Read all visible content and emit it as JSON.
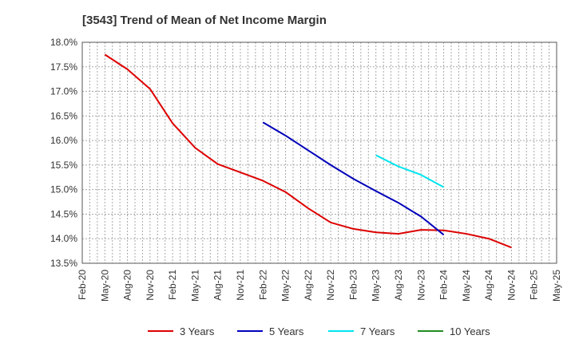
{
  "chart_data": {
    "type": "line",
    "title": "[3543]  Trend of Mean of Net Income Margin",
    "xlabel": "",
    "ylabel": "",
    "ylim": [
      13.5,
      18.0
    ],
    "grid": true,
    "legend_position": "bottom",
    "x_ticks": [
      "Feb-20",
      "May-20",
      "Aug-20",
      "Nov-20",
      "Feb-21",
      "May-21",
      "Aug-21",
      "Nov-21",
      "Feb-22",
      "May-22",
      "Aug-22",
      "Nov-22",
      "Feb-23",
      "May-23",
      "Aug-23",
      "Nov-23",
      "Feb-24",
      "May-24",
      "Aug-24",
      "Nov-24",
      "Feb-25",
      "May-25"
    ],
    "y_ticks": [
      "13.5%",
      "14.0%",
      "14.5%",
      "15.0%",
      "15.5%",
      "16.0%",
      "16.5%",
      "17.0%",
      "17.5%",
      "18.0%"
    ],
    "series": [
      {
        "name": "3 Years",
        "color": "#dd0000",
        "points": [
          [
            "May-20",
            17.75
          ],
          [
            "Aug-20",
            17.45
          ],
          [
            "Nov-20",
            17.05
          ],
          [
            "Feb-21",
            16.35
          ],
          [
            "May-21",
            15.85
          ],
          [
            "Aug-21",
            15.52
          ],
          [
            "Nov-21",
            15.35
          ],
          [
            "Feb-22",
            15.18
          ],
          [
            "May-22",
            14.95
          ],
          [
            "Aug-22",
            14.62
          ],
          [
            "Nov-22",
            14.33
          ],
          [
            "Feb-23",
            14.2
          ],
          [
            "May-23",
            14.13
          ],
          [
            "Aug-23",
            14.1
          ],
          [
            "Nov-23",
            14.18
          ],
          [
            "Feb-24",
            14.17
          ],
          [
            "May-24",
            14.1
          ],
          [
            "Aug-24",
            14.0
          ],
          [
            "Nov-24",
            13.82
          ]
        ]
      },
      {
        "name": "5 Years",
        "color": "#0000bb",
        "points": [
          [
            "Feb-22",
            16.37
          ],
          [
            "May-22",
            16.1
          ],
          [
            "Aug-22",
            15.8
          ],
          [
            "Nov-22",
            15.5
          ],
          [
            "Feb-23",
            15.22
          ],
          [
            "May-23",
            14.97
          ],
          [
            "Aug-23",
            14.73
          ],
          [
            "Nov-23",
            14.45
          ],
          [
            "Feb-24",
            14.08
          ]
        ]
      },
      {
        "name": "7 Years",
        "color": "#00e5ee",
        "points": [
          [
            "May-23",
            15.7
          ],
          [
            "Aug-23",
            15.47
          ],
          [
            "Nov-23",
            15.3
          ],
          [
            "Feb-24",
            15.05
          ]
        ]
      },
      {
        "name": "10 Years",
        "color": "#228b22",
        "points": []
      }
    ]
  }
}
